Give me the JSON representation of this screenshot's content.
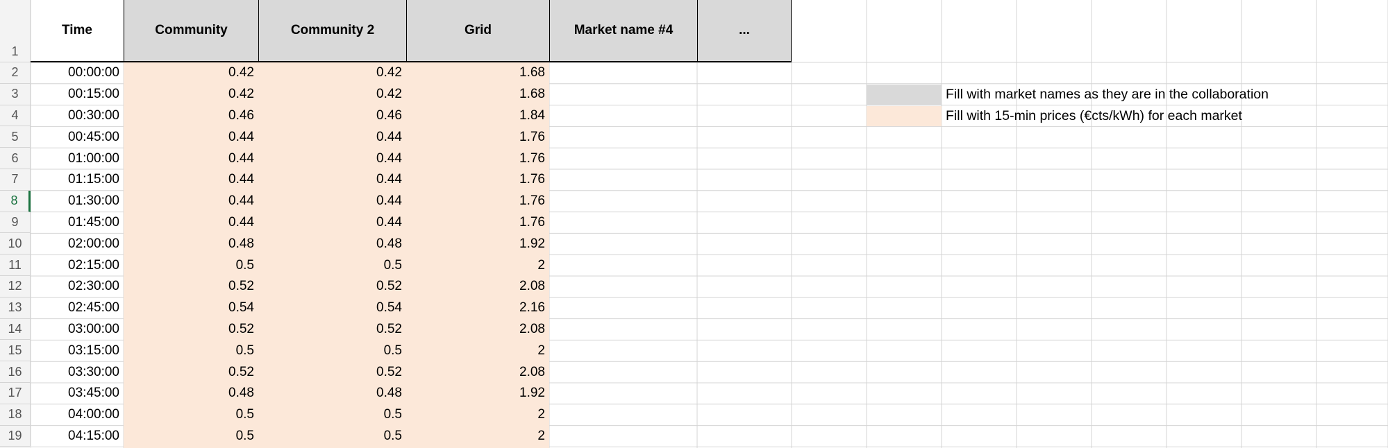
{
  "sheet": {
    "row_numbers": [
      "1",
      "2",
      "3",
      "4",
      "5",
      "6",
      "7",
      "8",
      "9",
      "10",
      "11",
      "12",
      "13",
      "14",
      "15",
      "16",
      "17",
      "18",
      "19"
    ],
    "active_row": "8",
    "headers": [
      {
        "label": "Time",
        "style": "plain"
      },
      {
        "label": "Community",
        "style": "gray"
      },
      {
        "label": "Community 2",
        "style": "gray"
      },
      {
        "label": "Grid",
        "style": "gray"
      },
      {
        "label": "Market name #4",
        "style": "gray"
      },
      {
        "label": "...",
        "style": "gray"
      }
    ],
    "rows": [
      [
        "00:00:00",
        "0.42",
        "0.42",
        "1.68"
      ],
      [
        "00:15:00",
        "0.42",
        "0.42",
        "1.68"
      ],
      [
        "00:30:00",
        "0.46",
        "0.46",
        "1.84"
      ],
      [
        "00:45:00",
        "0.44",
        "0.44",
        "1.76"
      ],
      [
        "01:00:00",
        "0.44",
        "0.44",
        "1.76"
      ],
      [
        "01:15:00",
        "0.44",
        "0.44",
        "1.76"
      ],
      [
        "01:30:00",
        "0.44",
        "0.44",
        "1.76"
      ],
      [
        "01:45:00",
        "0.44",
        "0.44",
        "1.76"
      ],
      [
        "02:00:00",
        "0.48",
        "0.48",
        "1.92"
      ],
      [
        "02:15:00",
        "0.5",
        "0.5",
        "2"
      ],
      [
        "02:30:00",
        "0.52",
        "0.52",
        "2.08"
      ],
      [
        "02:45:00",
        "0.54",
        "0.54",
        "2.16"
      ],
      [
        "03:00:00",
        "0.52",
        "0.52",
        "2.08"
      ],
      [
        "03:15:00",
        "0.5",
        "0.5",
        "2"
      ],
      [
        "03:30:00",
        "0.52",
        "0.52",
        "2.08"
      ],
      [
        "03:45:00",
        "0.48",
        "0.48",
        "1.92"
      ],
      [
        "04:00:00",
        "0.5",
        "0.5",
        "2"
      ],
      [
        "04:15:00",
        "0.5",
        "0.5",
        "2"
      ]
    ]
  },
  "legend": [
    {
      "text": "Fill with market names as they are in the collaboration",
      "color": "#d9d9d9"
    },
    {
      "text": "Fill with 15-min prices (€cts/kWh) for each market",
      "color": "#fce8d9"
    }
  ],
  "colors": {
    "header_gray": "#d9d9d9",
    "price_peach": "#fce8d9",
    "grid_line": "#d4d4d4",
    "active_row": "#1a7340"
  }
}
